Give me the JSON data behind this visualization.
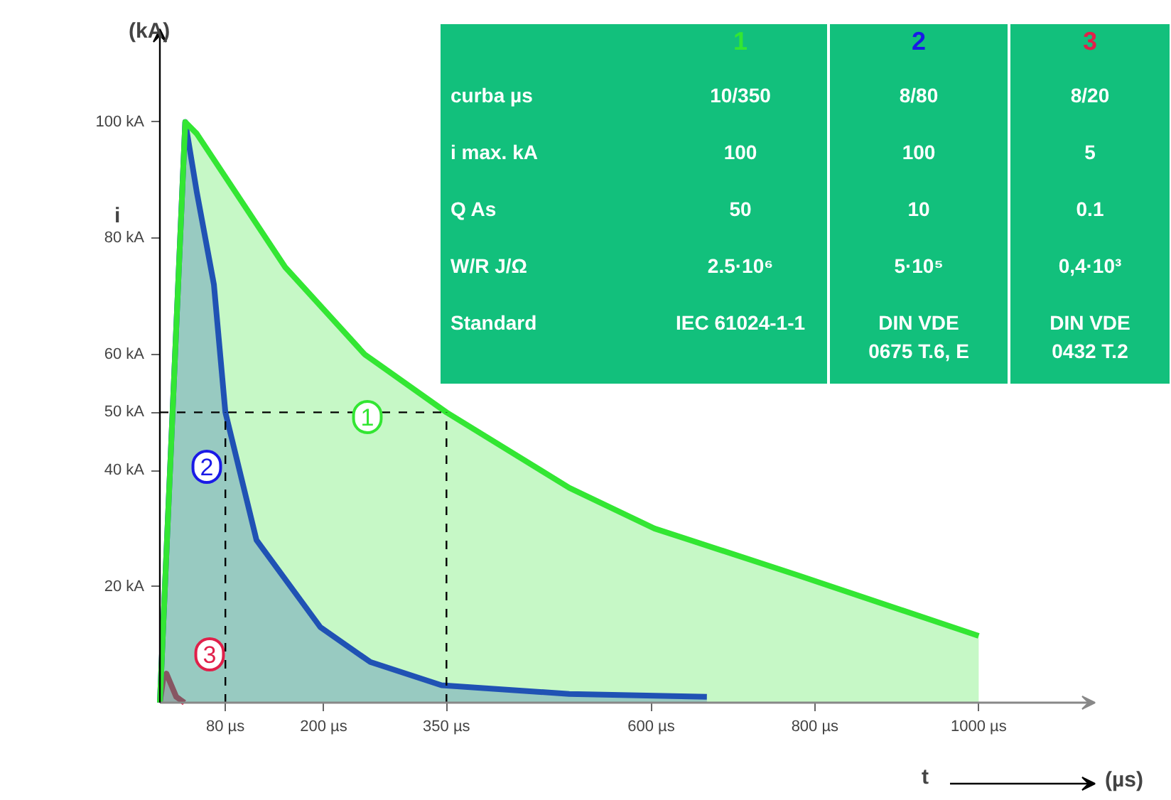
{
  "chart_data": {
    "type": "area",
    "xlabel": "t",
    "ylabel": "i",
    "xlim": [
      0,
      1142
    ],
    "ylim": [
      0,
      116
    ],
    "xticks": [
      {
        "value": 80,
        "label": "80 µs"
      },
      {
        "value": 200,
        "label": "200 µs"
      },
      {
        "value": 350,
        "label": "350 µs"
      },
      {
        "value": 600,
        "label": "600 µs"
      },
      {
        "value": 800,
        "label": "800 µs"
      },
      {
        "value": 1000,
        "label": "1000 µs"
      }
    ],
    "yticks": [
      {
        "value": 20,
        "label": "20 kA"
      },
      {
        "value": 40,
        "label": "40 kA"
      },
      {
        "value": 50,
        "label": "50 kA"
      },
      {
        "value": 60,
        "label": "60 kA"
      },
      {
        "value": 80,
        "label": "80 kA"
      },
      {
        "value": 100,
        "label": "100 kA"
      }
    ],
    "series": [
      {
        "name": "1",
        "color": "#33e633",
        "x": [
          0,
          31,
          45,
          153,
          250,
          350,
          500,
          604,
          778,
          1000
        ],
        "values": [
          0,
          100,
          98,
          75,
          60,
          50,
          37,
          30,
          22,
          11.5
        ]
      },
      {
        "name": "2",
        "color": "#1a1ae6",
        "x": [
          0,
          31,
          45,
          66,
          80,
          118,
          196,
          257,
          344,
          500,
          668
        ],
        "values": [
          0,
          100,
          88,
          72,
          50,
          28,
          13,
          7,
          3,
          1.5,
          1
        ]
      },
      {
        "name": "3",
        "color": "#e0204a",
        "x": [
          0,
          4,
          8,
          14,
          20,
          30
        ],
        "values": [
          0,
          4,
          5,
          3,
          1,
          0
        ]
      }
    ],
    "ref_lines": [
      {
        "axis": "y",
        "value": 50,
        "line_style": "dashed",
        "color": "#000000"
      },
      {
        "axis": "x",
        "value": 80,
        "line_style": "dashed",
        "color": "#000000"
      },
      {
        "axis": "x",
        "value": 350,
        "line_style": "dashed",
        "color": "#000000"
      }
    ],
    "grid": false,
    "annotations": [
      "(kA)",
      "(µs)",
      "curba µs",
      "10/350",
      "8/80",
      "8/20",
      "i max. kA",
      "100",
      "100",
      "5",
      "Q As",
      "50",
      "10",
      "0.1",
      "W/R J/Ω",
      "2.5·10⁶",
      "5·10⁵",
      "0,4·10³",
      "Standard",
      "IEC 61024-1-1",
      "DIN VDE\n0675 T.6, E",
      "DIN VDE\n0432 T.2"
    ]
  }
}
